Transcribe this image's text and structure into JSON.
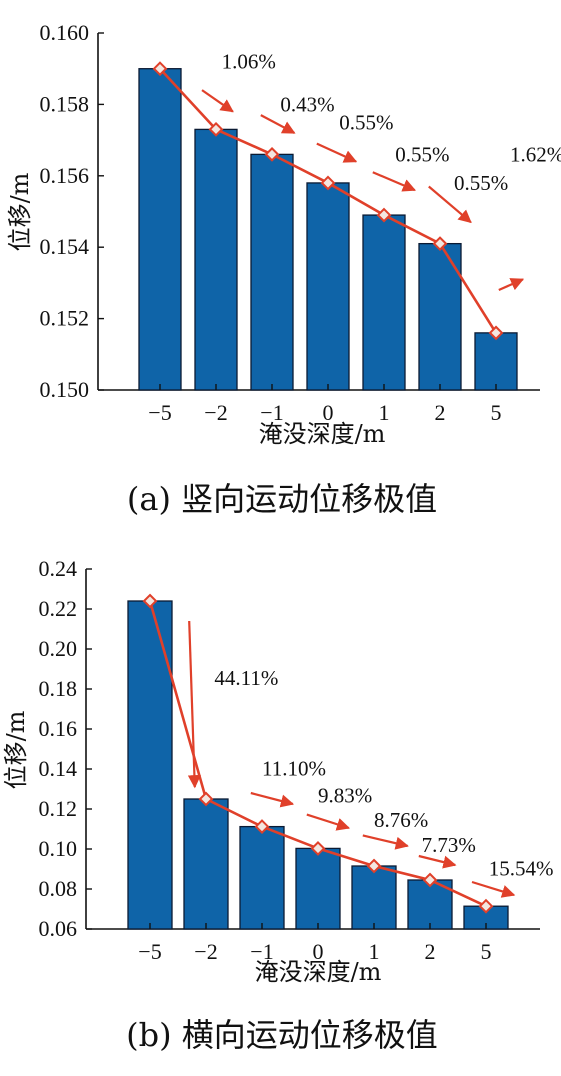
{
  "chart_data": [
    {
      "type": "bar",
      "categories": [
        "−5",
        "−2",
        "−1",
        "0",
        "1",
        "2",
        "5"
      ],
      "values": [
        0.159,
        0.1573,
        0.1566,
        0.1558,
        0.1549,
        0.1541,
        0.1516
      ],
      "ylim": [
        0.15,
        0.16
      ],
      "yticks": [
        "0.150",
        "0.152",
        "0.154",
        "0.156",
        "0.158",
        "0.160"
      ],
      "ytick_values": [
        0.15,
        0.152,
        0.154,
        0.156,
        0.158,
        0.16
      ],
      "xlabel": "淹没深度/m",
      "ylabel": "位移/m",
      "caption": "(a) 竖向运动位移极值",
      "percent_labels": [
        "1.06%",
        "0.43%",
        "0.55%",
        "0.55%",
        "0.55%",
        "1.62%"
      ],
      "percent_label_positions": [
        [
          1.1,
          0.159
        ],
        [
          2.15,
          0.1578
        ],
        [
          3.2,
          0.1573
        ],
        [
          4.2,
          0.1564
        ],
        [
          5.25,
          0.1556
        ],
        [
          6.25,
          0.1564
        ]
      ],
      "arrows": [
        [
          [
            0.75,
            0.1584
          ],
          [
            1.3,
            0.1578
          ]
        ],
        [
          [
            1.8,
            0.1577
          ],
          [
            2.4,
            0.1572
          ]
        ],
        [
          [
            2.8,
            0.1569
          ],
          [
            3.5,
            0.1564
          ]
        ],
        [
          [
            3.8,
            0.1561
          ],
          [
            4.55,
            0.1556
          ]
        ],
        [
          [
            4.8,
            0.1557
          ],
          [
            5.55,
            0.1547
          ]
        ],
        [
          [
            6.05,
            0.1528
          ],
          [
            6.48,
            0.1531
          ]
        ]
      ],
      "colors": {
        "bar": "#0f64a8",
        "bar_edge": "#0a1a33",
        "line": "#e0402a"
      }
    },
    {
      "type": "bar",
      "categories": [
        "−5",
        "−2",
        "−1",
        "0",
        "1",
        "2",
        "5"
      ],
      "values": [
        0.224,
        0.125,
        0.1112,
        0.1003,
        0.0915,
        0.0845,
        0.0714
      ],
      "ylim": [
        0.06,
        0.24
      ],
      "yticks": [
        "0.06",
        "0.08",
        "0.10",
        "0.12",
        "0.14",
        "0.16",
        "0.18",
        "0.20",
        "0.22",
        "0.24"
      ],
      "ytick_values": [
        0.06,
        0.08,
        0.1,
        0.12,
        0.14,
        0.16,
        0.18,
        0.2,
        0.22,
        0.24
      ],
      "xlabel": "淹没深度/m",
      "ylabel": "位移/m",
      "caption": "(b) 横向运动位移极值",
      "percent_labels": [
        "44.11%",
        "11.10%",
        "9.83%",
        "8.76%",
        "7.73%",
        "15.54%"
      ],
      "percent_label_positions": [
        [
          1.15,
          0.182
        ],
        [
          2.0,
          0.1367
        ],
        [
          3.0,
          0.1232
        ],
        [
          4.0,
          0.111
        ],
        [
          4.85,
          0.0985
        ],
        [
          6.05,
          0.0868
        ]
      ],
      "arrows": [
        [
          [
            0.7,
            0.214
          ],
          [
            0.8,
            0.131
          ]
        ],
        [
          [
            1.8,
            0.128
          ],
          [
            2.55,
            0.1225
          ]
        ],
        [
          [
            2.8,
            0.1172
          ],
          [
            3.55,
            0.1105
          ]
        ],
        [
          [
            3.8,
            0.1068
          ],
          [
            4.6,
            0.1015
          ]
        ],
        [
          [
            4.8,
            0.0965
          ],
          [
            5.45,
            0.092
          ]
        ],
        [
          [
            5.75,
            0.0835
          ],
          [
            6.5,
            0.077
          ]
        ]
      ],
      "colors": {
        "bar": "#0f64a8",
        "bar_edge": "#0a1a33",
        "line": "#e0402a"
      }
    }
  ]
}
